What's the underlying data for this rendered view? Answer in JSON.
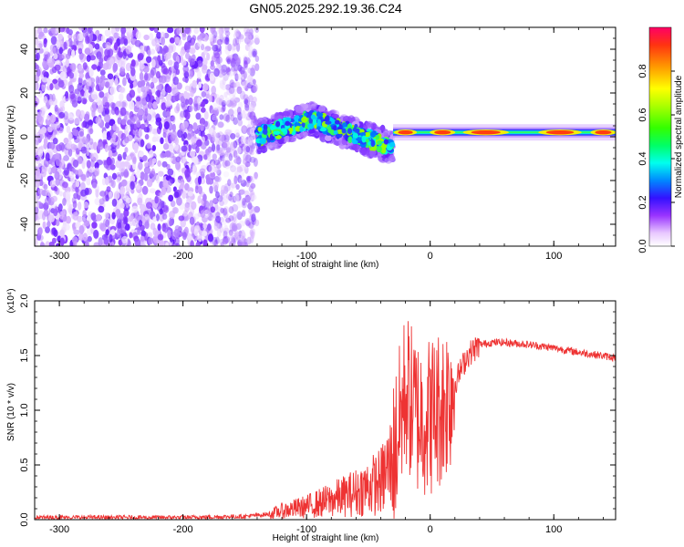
{
  "title": "GN05.2025.292.19.36.C24",
  "chart_data": [
    {
      "type": "heatmap",
      "xlabel": "Height of straight line (km)",
      "ylabel": "Frequency (Hz)",
      "xlim": [
        -320,
        150
      ],
      "ylim": [
        -50,
        50
      ],
      "xticks": [
        -300,
        -200,
        -100,
        0,
        100
      ],
      "yticks": [
        -40,
        -20,
        0,
        20,
        40
      ],
      "colorbar": {
        "label": "Normalized spectral amplitude",
        "range": [
          0.0,
          1.0
        ],
        "ticks": [
          0.0,
          0.2,
          0.4,
          0.6,
          0.8
        ],
        "tick_labels": [
          "0.0",
          "0.2",
          "0.4",
          "0.6",
          "0.8"
        ]
      },
      "regions": [
        {
          "name": "noise",
          "x_range": [
            -320,
            -140
          ],
          "freq_range": [
            -50,
            50
          ],
          "amplitude": 0.15
        },
        {
          "name": "chirp",
          "x_range": [
            -140,
            -30
          ],
          "freq_start": 0,
          "freq_peak": 8,
          "freq_end": -5,
          "amplitude": 0.35
        },
        {
          "name": "tone",
          "x_range": [
            -30,
            150
          ],
          "freq": 2,
          "amplitude": 0.9
        }
      ]
    },
    {
      "type": "line",
      "xlabel": "Height of straight line (km)",
      "ylabel": "SNR (10 * v/v)",
      "scale_label": "(x10⁴)",
      "xlim": [
        -320,
        150
      ],
      "ylim": [
        0,
        2.0
      ],
      "xticks": [
        -300,
        -200,
        -100,
        0,
        100
      ],
      "yticks": [
        0.0,
        0.5,
        1.0,
        1.5,
        2.0
      ],
      "ytick_labels": [
        "0.0",
        "0.5",
        "1.0",
        "1.5",
        "2.0"
      ],
      "color": "#ee3333",
      "x": [
        -320,
        -300,
        -250,
        -200,
        -150,
        -130,
        -120,
        -100,
        -80,
        -60,
        -40,
        -30,
        -25,
        -20,
        -15,
        -10,
        0,
        10,
        20,
        30,
        40,
        50,
        60,
        80,
        100,
        120,
        150
      ],
      "values": [
        0.02,
        0.02,
        0.02,
        0.02,
        0.03,
        0.05,
        0.08,
        0.12,
        0.18,
        0.25,
        0.35,
        0.55,
        0.85,
        1.2,
        1.05,
        0.95,
        0.95,
        1.05,
        1.25,
        1.5,
        1.6,
        1.62,
        1.62,
        1.6,
        1.57,
        1.53,
        1.48
      ]
    }
  ]
}
